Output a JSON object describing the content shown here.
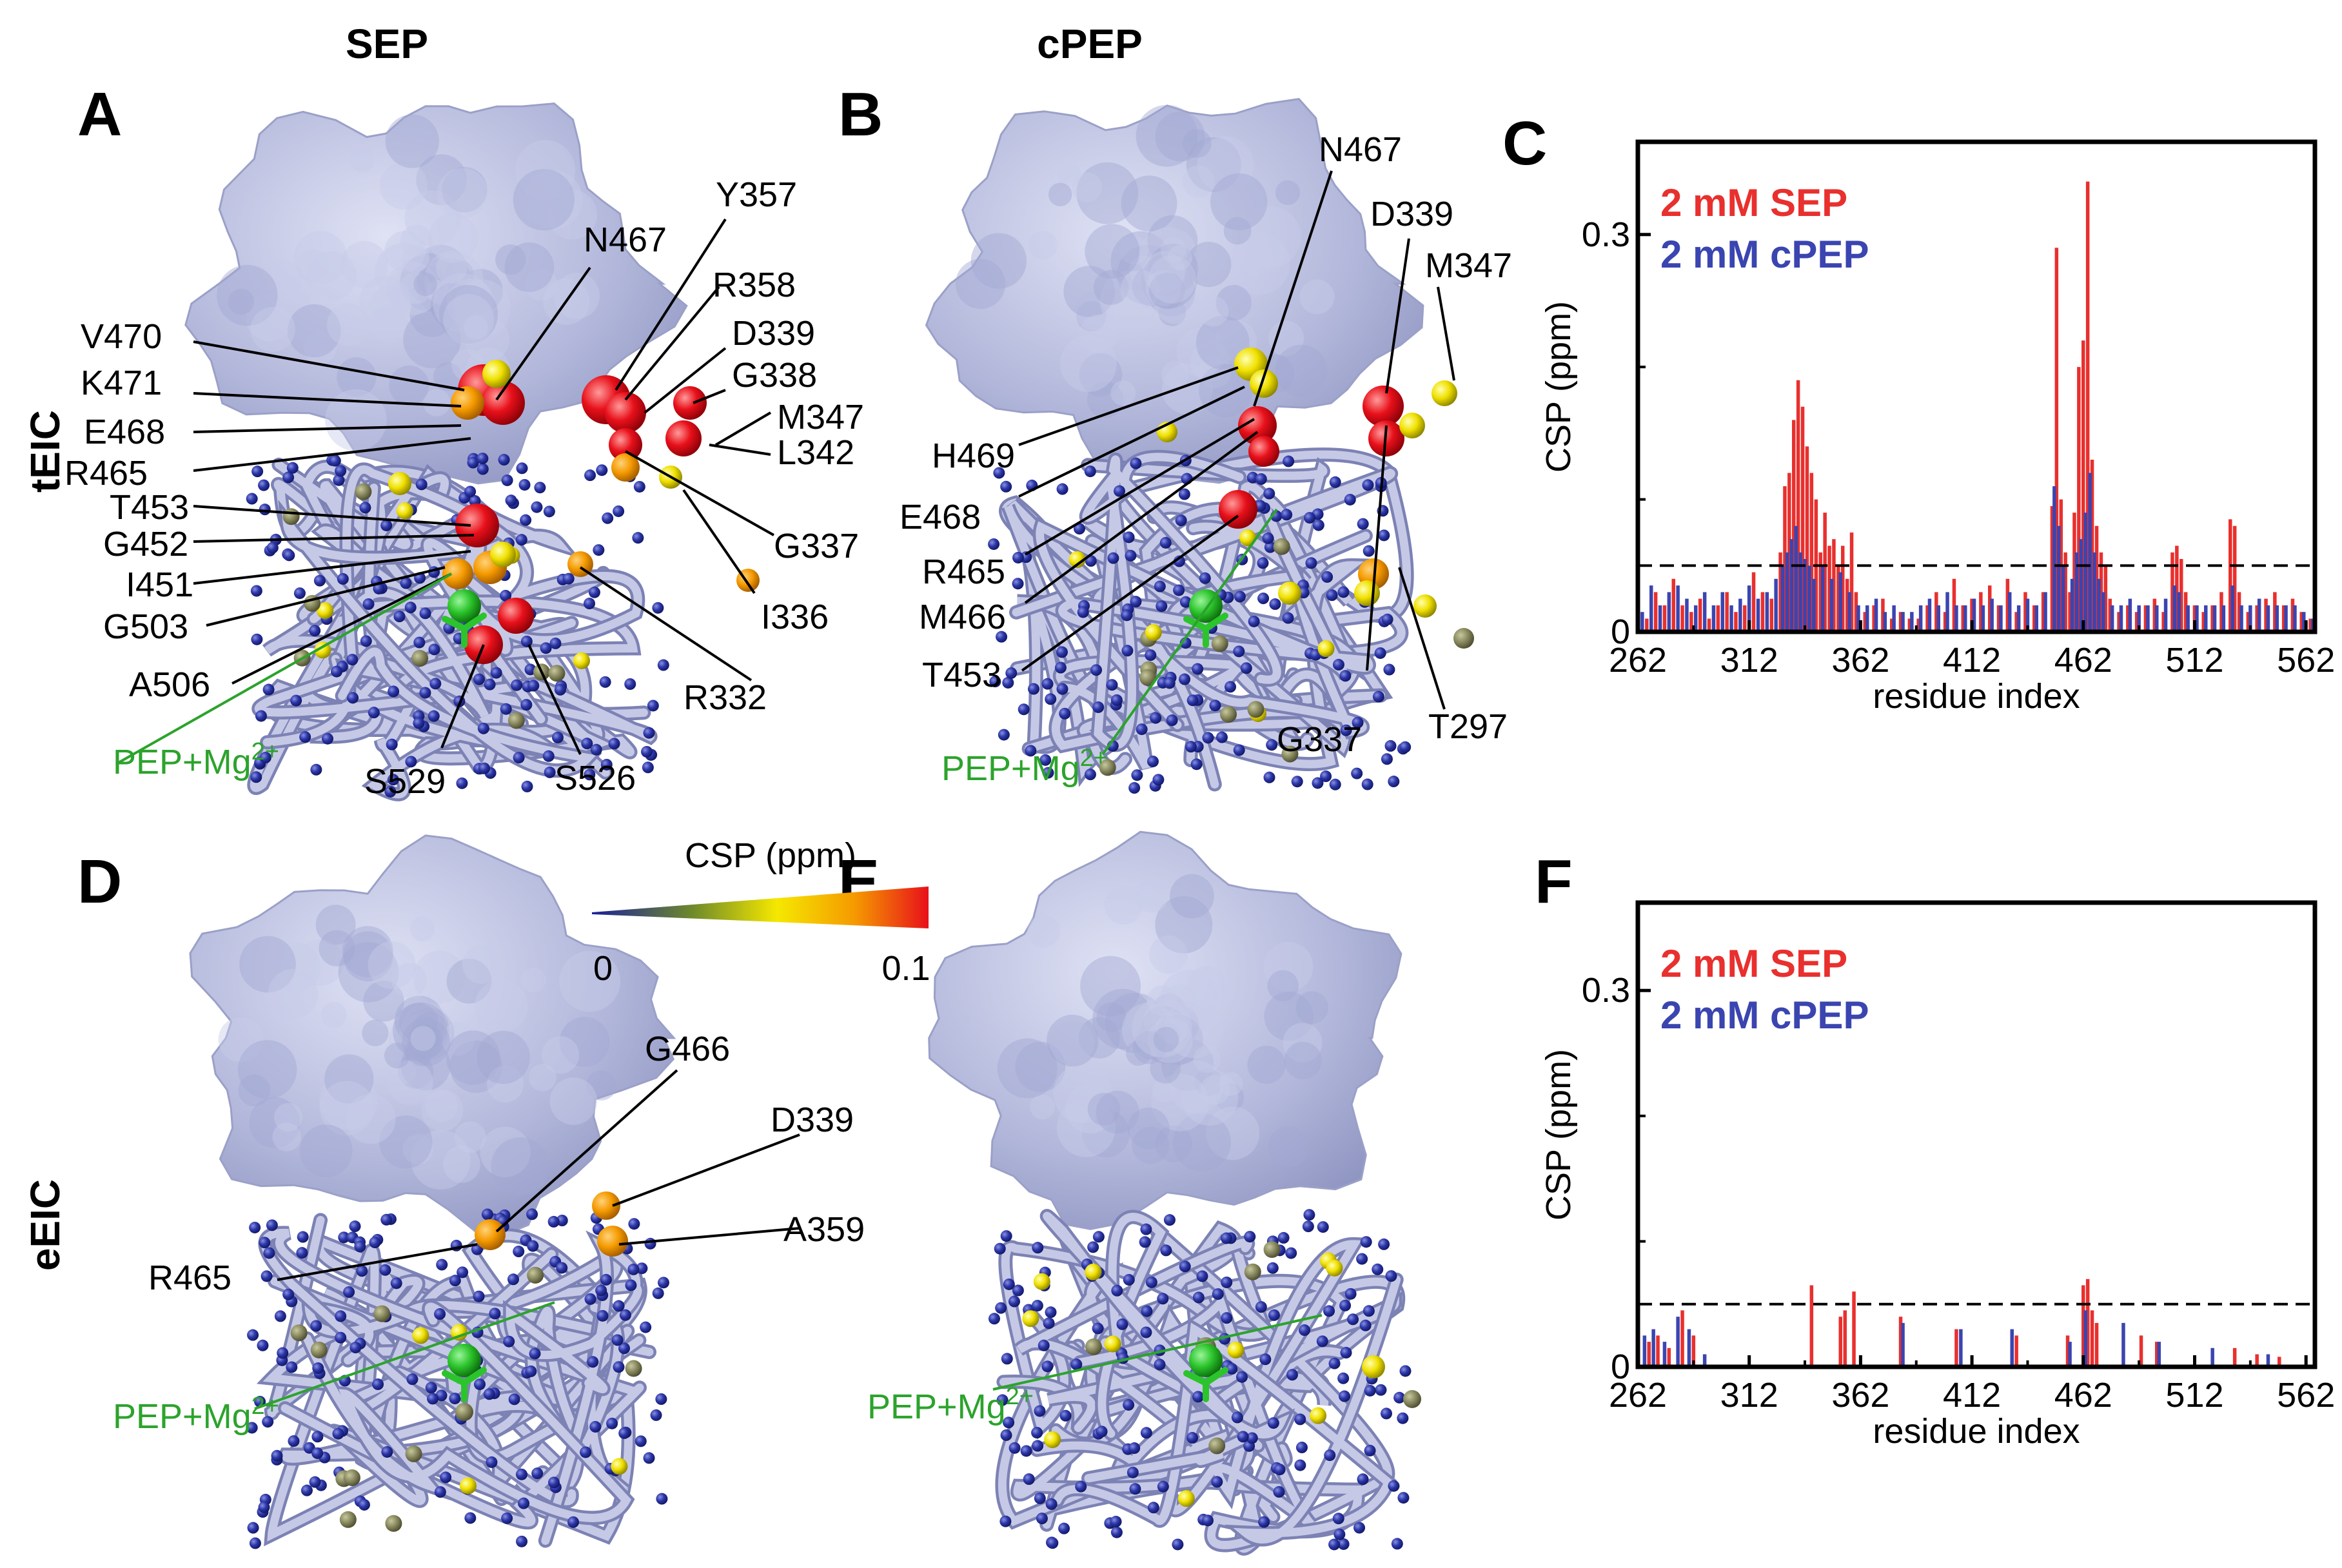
{
  "figure": {
    "column_headers": {
      "sep": "SEP",
      "cpep": "cPEP"
    },
    "row_headers": {
      "teic": "tEIC",
      "eeic": "eEIC"
    },
    "panels": [
      "A",
      "B",
      "C",
      "D",
      "E",
      "F"
    ],
    "ligand_label": "PEP+Mg",
    "ligand_charge": "2+",
    "colors": {
      "surface": "#b4b9dc",
      "backbone": "#b8bcdc",
      "small_sphere": "#2b36a8",
      "sep": "#e8302e",
      "cpep": "#3a45b0",
      "ligand": "#2ca32c"
    },
    "colorbar": {
      "title": "CSP (ppm)",
      "min_label": "0",
      "max_label": "0.1",
      "stops": [
        "#1a1f9a",
        "#6f8a2a",
        "#f5e800",
        "#f59a00",
        "#e8101a"
      ]
    },
    "labels": {
      "A": [
        "N467",
        "Y357",
        "R358",
        "D339",
        "G338",
        "V470",
        "K471",
        "E468",
        "R465",
        "T453",
        "G452",
        "I451",
        "G503",
        "A506",
        "M347",
        "L342",
        "G337",
        "I336",
        "R332",
        "S529",
        "S526"
      ],
      "B": [
        "N467",
        "D339",
        "M347",
        "H469",
        "E468",
        "R465",
        "M466",
        "T453",
        "G337",
        "T297"
      ],
      "D": [
        "G466",
        "D339",
        "A359",
        "R465"
      ]
    }
  },
  "chart_data": [
    {
      "panel": "C",
      "type": "bar",
      "xlabel": "residue index",
      "ylabel": "CSP (ppm)",
      "xlim": [
        262,
        566
      ],
      "ylim": [
        0,
        0.37
      ],
      "xticks": [
        "262",
        "312",
        "362",
        "412",
        "462",
        "512",
        "562"
      ],
      "yticks": [
        "0",
        "0.3"
      ],
      "threshold": 0.05,
      "legend": [
        "2 mM SEP",
        "2 mM cPEP"
      ],
      "legend_position": "top-left",
      "series": [
        {
          "name": "2 mM SEP",
          "color": "#e8302e",
          "points": [
            [
              266,
              0.01
            ],
            [
              270,
              0.03
            ],
            [
              274,
              0.02
            ],
            [
              278,
              0.04
            ],
            [
              282,
              0.02
            ],
            [
              286,
              0.015
            ],
            [
              290,
              0.025
            ],
            [
              294,
              0.01
            ],
            [
              298,
              0.02
            ],
            [
              302,
              0.03
            ],
            [
              306,
              0.015
            ],
            [
              310,
              0.02
            ],
            [
              314,
              0.045
            ],
            [
              318,
              0.03
            ],
            [
              322,
              0.025
            ],
            [
              326,
              0.06
            ],
            [
              328,
              0.11
            ],
            [
              330,
              0.12
            ],
            [
              332,
              0.16
            ],
            [
              334,
              0.19
            ],
            [
              336,
              0.17
            ],
            [
              338,
              0.14
            ],
            [
              340,
              0.12
            ],
            [
              342,
              0.1
            ],
            [
              344,
              0.06
            ],
            [
              346,
              0.09
            ],
            [
              348,
              0.065
            ],
            [
              350,
              0.07
            ],
            [
              352,
              0.05
            ],
            [
              354,
              0.065
            ],
            [
              356,
              0.04
            ],
            [
              358,
              0.075
            ],
            [
              360,
              0.03
            ],
            [
              364,
              0.015
            ],
            [
              368,
              0.02
            ],
            [
              372,
              0.025
            ],
            [
              376,
              0.01
            ],
            [
              380,
              0.015
            ],
            [
              384,
              0.01
            ],
            [
              388,
              0.01
            ],
            [
              392,
              0.02
            ],
            [
              396,
              0.03
            ],
            [
              400,
              0.015
            ],
            [
              404,
              0.04
            ],
            [
              408,
              0.02
            ],
            [
              412,
              0.025
            ],
            [
              416,
              0.03
            ],
            [
              420,
              0.035
            ],
            [
              424,
              0.02
            ],
            [
              428,
              0.04
            ],
            [
              432,
              0.015
            ],
            [
              436,
              0.03
            ],
            [
              440,
              0.02
            ],
            [
              444,
              0.03
            ],
            [
              448,
              0.095
            ],
            [
              450,
              0.29
            ],
            [
              452,
              0.1
            ],
            [
              454,
              0.06
            ],
            [
              456,
              0.03
            ],
            [
              458,
              0.09
            ],
            [
              460,
              0.2
            ],
            [
              462,
              0.22
            ],
            [
              464,
              0.34
            ],
            [
              466,
              0.13
            ],
            [
              468,
              0.08
            ],
            [
              470,
              0.06
            ],
            [
              472,
              0.05
            ],
            [
              474,
              0.025
            ],
            [
              478,
              0.015
            ],
            [
              482,
              0.02
            ],
            [
              486,
              0.015
            ],
            [
              490,
              0.02
            ],
            [
              494,
              0.025
            ],
            [
              498,
              0.015
            ],
            [
              502,
              0.06
            ],
            [
              504,
              0.065
            ],
            [
              506,
              0.055
            ],
            [
              508,
              0.03
            ],
            [
              512,
              0.02
            ],
            [
              516,
              0.015
            ],
            [
              520,
              0.02
            ],
            [
              524,
              0.03
            ],
            [
              528,
              0.085
            ],
            [
              530,
              0.08
            ],
            [
              532,
              0.03
            ],
            [
              536,
              0.015
            ],
            [
              540,
              0.02
            ],
            [
              544,
              0.025
            ],
            [
              548,
              0.03
            ],
            [
              552,
              0.02
            ],
            [
              556,
              0.025
            ],
            [
              560,
              0.015
            ],
            [
              564,
              0.01
            ]
          ]
        },
        {
          "name": "2 mM cPEP",
          "color": "#3a45b0",
          "points": [
            [
              264,
              0.015
            ],
            [
              268,
              0.035
            ],
            [
              272,
              0.02
            ],
            [
              276,
              0.03
            ],
            [
              280,
              0.035
            ],
            [
              284,
              0.025
            ],
            [
              288,
              0.02
            ],
            [
              292,
              0.03
            ],
            [
              296,
              0.02
            ],
            [
              300,
              0.03
            ],
            [
              304,
              0.02
            ],
            [
              308,
              0.025
            ],
            [
              312,
              0.035
            ],
            [
              316,
              0.025
            ],
            [
              320,
              0.03
            ],
            [
              324,
              0.04
            ],
            [
              327,
              0.05
            ],
            [
              329,
              0.06
            ],
            [
              331,
              0.07
            ],
            [
              333,
              0.08
            ],
            [
              335,
              0.06
            ],
            [
              337,
              0.055
            ],
            [
              339,
              0.05
            ],
            [
              341,
              0.04
            ],
            [
              345,
              0.05
            ],
            [
              349,
              0.04
            ],
            [
              353,
              0.045
            ],
            [
              357,
              0.03
            ],
            [
              361,
              0.02
            ],
            [
              365,
              0.02
            ],
            [
              369,
              0.025
            ],
            [
              373,
              0.015
            ],
            [
              377,
              0.02
            ],
            [
              381,
              0.015
            ],
            [
              385,
              0.015
            ],
            [
              389,
              0.02
            ],
            [
              393,
              0.025
            ],
            [
              397,
              0.02
            ],
            [
              401,
              0.03
            ],
            [
              405,
              0.02
            ],
            [
              409,
              0.02
            ],
            [
              413,
              0.025
            ],
            [
              417,
              0.02
            ],
            [
              421,
              0.025
            ],
            [
              425,
              0.02
            ],
            [
              429,
              0.03
            ],
            [
              433,
              0.02
            ],
            [
              437,
              0.025
            ],
            [
              441,
              0.02
            ],
            [
              445,
              0.03
            ],
            [
              449,
              0.11
            ],
            [
              451,
              0.08
            ],
            [
              453,
              0.05
            ],
            [
              457,
              0.04
            ],
            [
              459,
              0.06
            ],
            [
              461,
              0.07
            ],
            [
              463,
              0.09
            ],
            [
              465,
              0.12
            ],
            [
              467,
              0.06
            ],
            [
              469,
              0.04
            ],
            [
              471,
              0.03
            ],
            [
              475,
              0.02
            ],
            [
              479,
              0.02
            ],
            [
              483,
              0.025
            ],
            [
              487,
              0.02
            ],
            [
              491,
              0.02
            ],
            [
              495,
              0.02
            ],
            [
              499,
              0.025
            ],
            [
              503,
              0.035
            ],
            [
              505,
              0.03
            ],
            [
              509,
              0.02
            ],
            [
              513,
              0.02
            ],
            [
              517,
              0.02
            ],
            [
              521,
              0.02
            ],
            [
              525,
              0.02
            ],
            [
              529,
              0.035
            ],
            [
              533,
              0.02
            ],
            [
              537,
              0.02
            ],
            [
              541,
              0.025
            ],
            [
              545,
              0.02
            ],
            [
              549,
              0.02
            ],
            [
              553,
              0.02
            ],
            [
              557,
              0.02
            ],
            [
              561,
              0.015
            ],
            [
              565,
              0.01
            ]
          ]
        }
      ]
    },
    {
      "panel": "F",
      "type": "bar",
      "xlabel": "residue index",
      "ylabel": "CSP (ppm)",
      "xlim": [
        262,
        566
      ],
      "ylim": [
        0,
        0.37
      ],
      "xticks": [
        "262",
        "312",
        "362",
        "412",
        "462",
        "512",
        "562"
      ],
      "yticks": [
        "0",
        "0.3"
      ],
      "threshold": 0.05,
      "legend": [
        "2 mM SEP",
        "2 mM cPEP"
      ],
      "legend_position": "top-left",
      "series": [
        {
          "name": "2 mM SEP",
          "color": "#e8302e",
          "points": [
            [
              267,
              0.02
            ],
            [
              271,
              0.025
            ],
            [
              276,
              0.015
            ],
            [
              282,
              0.045
            ],
            [
              287,
              0.025
            ],
            [
              340,
              0.065
            ],
            [
              353,
              0.04
            ],
            [
              355,
              0.045
            ],
            [
              359,
              0.06
            ],
            [
              380,
              0.04
            ],
            [
              405,
              0.03
            ],
            [
              432,
              0.025
            ],
            [
              455,
              0.025
            ],
            [
              462,
              0.065
            ],
            [
              464,
              0.07
            ],
            [
              466,
              0.045
            ],
            [
              468,
              0.035
            ],
            [
              488,
              0.025
            ],
            [
              495,
              0.02
            ],
            [
              530,
              0.015
            ],
            [
              540,
              0.01
            ],
            [
              550,
              0.008
            ]
          ]
        },
        {
          "name": "2 mM cPEP",
          "color": "#3a45b0",
          "points": [
            [
              265,
              0.025
            ],
            [
              269,
              0.03
            ],
            [
              274,
              0.02
            ],
            [
              280,
              0.04
            ],
            [
              285,
              0.03
            ],
            [
              292,
              0.01
            ],
            [
              381,
              0.035
            ],
            [
              407,
              0.03
            ],
            [
              430,
              0.03
            ],
            [
              456,
              0.02
            ],
            [
              463,
              0.045
            ],
            [
              480,
              0.035
            ],
            [
              496,
              0.02
            ],
            [
              520,
              0.015
            ],
            [
              545,
              0.01
            ]
          ]
        }
      ]
    }
  ]
}
